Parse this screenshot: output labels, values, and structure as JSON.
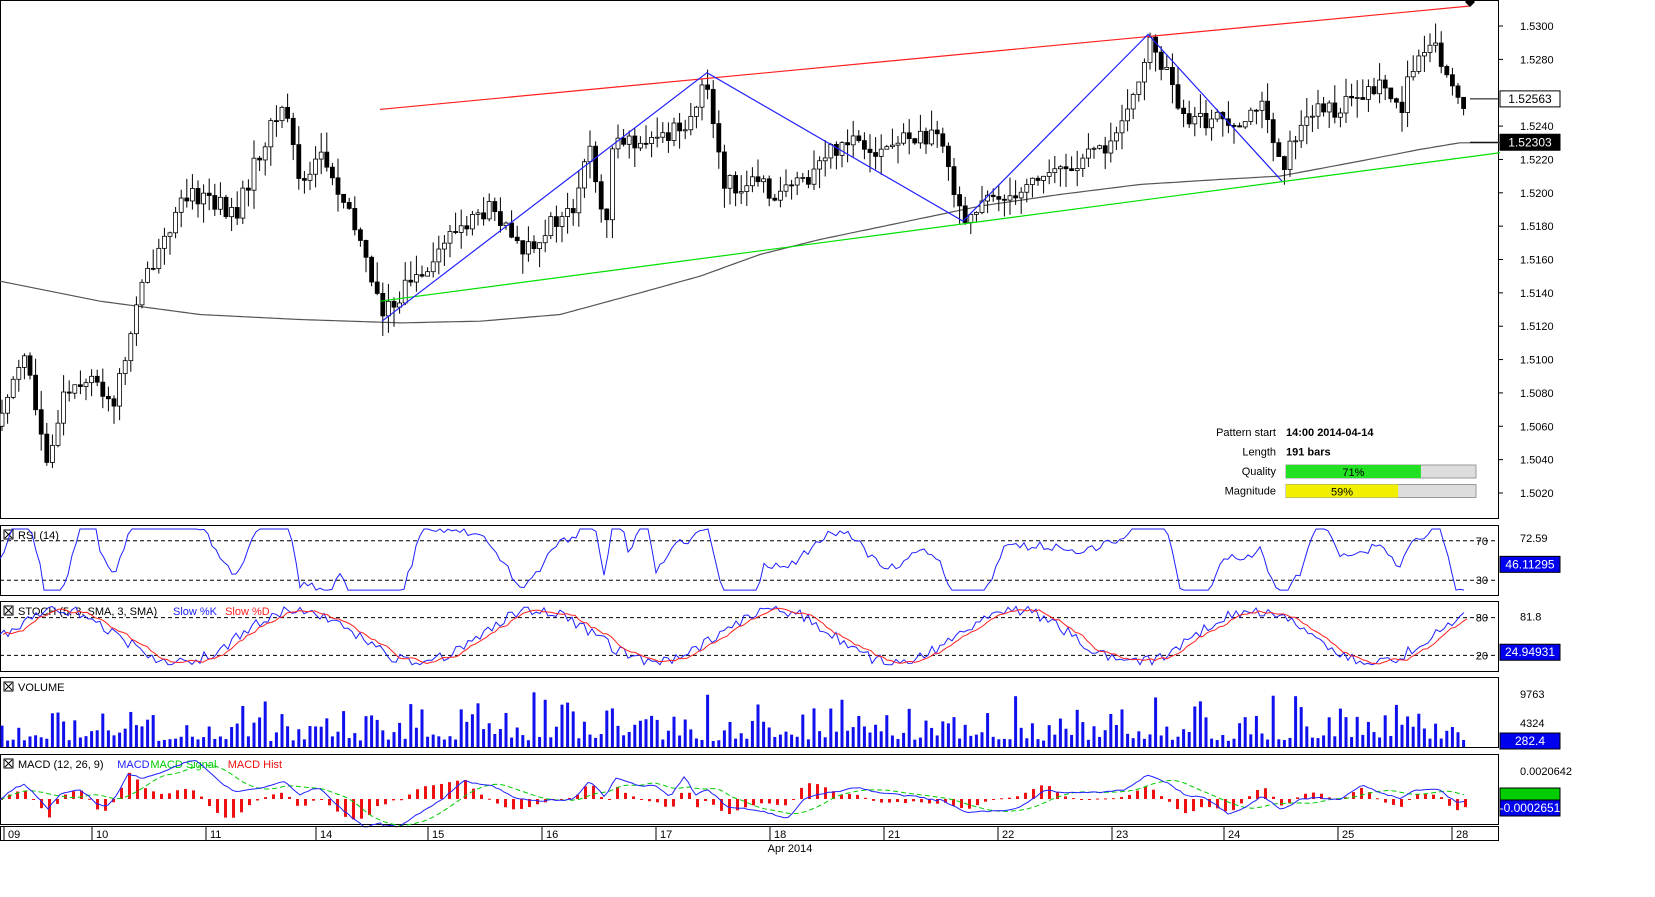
{
  "chart_data": {
    "type": "candlestick",
    "instrument_interval": "hourly",
    "price_axis": {
      "min": 1.5005,
      "max": 1.5315,
      "ticks": [
        "1.5300",
        "1.5280",
        "1.5240",
        "1.5220",
        "1.5200",
        "1.5180",
        "1.5160",
        "1.5140",
        "1.5120",
        "1.5100",
        "1.5080",
        "1.5060",
        "1.5040",
        "1.5020"
      ]
    },
    "x_axis": {
      "days": [
        "09",
        "10",
        "11",
        "14",
        "15",
        "16",
        "17",
        "18",
        "21",
        "22",
        "23",
        "24",
        "25",
        "28"
      ],
      "month_label": "Apr 2014"
    },
    "last_price_label": "1.52563",
    "ma_label": "1.52303",
    "price_anchors": [
      [
        0,
        1.506
      ],
      [
        15,
        1.5095
      ],
      [
        25,
        1.5105
      ],
      [
        48,
        1.503
      ],
      [
        62,
        1.508
      ],
      [
        85,
        1.509
      ],
      [
        115,
        1.5075
      ],
      [
        140,
        1.514
      ],
      [
        160,
        1.517
      ],
      [
        185,
        1.5195
      ],
      [
        205,
        1.52
      ],
      [
        235,
        1.5185
      ],
      [
        260,
        1.5225
      ],
      [
        285,
        1.5255
      ],
      [
        300,
        1.5205
      ],
      [
        320,
        1.5225
      ],
      [
        345,
        1.519
      ],
      [
        365,
        1.5165
      ],
      [
        383,
        1.5125
      ],
      [
        400,
        1.514
      ],
      [
        430,
        1.516
      ],
      [
        460,
        1.518
      ],
      [
        490,
        1.519
      ],
      [
        520,
        1.5165
      ],
      [
        550,
        1.518
      ],
      [
        575,
        1.519
      ],
      [
        590,
        1.523
      ],
      [
        605,
        1.517
      ],
      [
        615,
        1.524
      ],
      [
        640,
        1.5225
      ],
      [
        665,
        1.5235
      ],
      [
        690,
        1.5245
      ],
      [
        707,
        1.5265
      ],
      [
        725,
        1.5205
      ],
      [
        750,
        1.5205
      ],
      [
        780,
        1.52
      ],
      [
        800,
        1.5205
      ],
      [
        830,
        1.5225
      ],
      [
        855,
        1.5235
      ],
      [
        880,
        1.5225
      ],
      [
        915,
        1.5235
      ],
      [
        940,
        1.523
      ],
      [
        965,
        1.5185
      ],
      [
        990,
        1.5195
      ],
      [
        1010,
        1.52
      ],
      [
        1040,
        1.521
      ],
      [
        1070,
        1.5215
      ],
      [
        1100,
        1.5225
      ],
      [
        1125,
        1.524
      ],
      [
        1148,
        1.529
      ],
      [
        1165,
        1.5275
      ],
      [
        1185,
        1.524
      ],
      [
        1210,
        1.5245
      ],
      [
        1240,
        1.5245
      ],
      [
        1260,
        1.5255
      ],
      [
        1282,
        1.521
      ],
      [
        1300,
        1.5245
      ],
      [
        1330,
        1.525
      ],
      [
        1360,
        1.5255
      ],
      [
        1380,
        1.5265
      ],
      [
        1400,
        1.525
      ],
      [
        1415,
        1.528
      ],
      [
        1438,
        1.5285
      ],
      [
        1455,
        1.5255
      ],
      [
        1470,
        1.5256
      ]
    ],
    "ma_anchors": [
      [
        0,
        1.5147
      ],
      [
        100,
        1.5135
      ],
      [
        200,
        1.5127
      ],
      [
        300,
        1.5124
      ],
      [
        400,
        1.5122
      ],
      [
        480,
        1.5123
      ],
      [
        560,
        1.5127
      ],
      [
        640,
        1.514
      ],
      [
        700,
        1.515
      ],
      [
        760,
        1.5163
      ],
      [
        820,
        1.5172
      ],
      [
        900,
        1.5182
      ],
      [
        980,
        1.5192
      ],
      [
        1060,
        1.5199
      ],
      [
        1140,
        1.5205
      ],
      [
        1220,
        1.5208
      ],
      [
        1280,
        1.521
      ],
      [
        1360,
        1.5219
      ],
      [
        1420,
        1.5226
      ],
      [
        1460,
        1.523
      ],
      [
        1500,
        1.523
      ]
    ],
    "channel_upper": {
      "x": [
        380,
        1470
      ],
      "y": [
        1.525,
        1.5312
      ]
    },
    "channel_lower": {
      "x": [
        380,
        1500
      ],
      "y": [
        1.5135,
        1.5224
      ]
    },
    "pattern_zigzag": [
      [
        382,
        1.5123
      ],
      [
        707,
        1.5272
      ],
      [
        963,
        1.5183
      ],
      [
        1148,
        1.5295
      ],
      [
        1282,
        1.5207
      ]
    ],
    "pattern_info": {
      "rows": [
        {
          "label": "Pattern start",
          "value": "14:00 2014-04-14"
        },
        {
          "label": "Length",
          "value": "191 bars"
        },
        {
          "label": "Quality",
          "value": "71%",
          "fill": 0.71,
          "color": "#22e022"
        },
        {
          "label": "Magnitude",
          "value": "59%",
          "fill": 0.59,
          "color": "#f0f000"
        }
      ]
    },
    "indicators": [
      {
        "title": "RSI (14)",
        "axis_labels": [
          "70",
          "30"
        ],
        "side_labels": [
          "72.59"
        ],
        "value_label": "46.11295"
      },
      {
        "title": "STOCH (5, 3, SMA, 3, SMA)",
        "series": [
          "Slow %K",
          "Slow %D"
        ],
        "axis_labels": [
          "80",
          "20"
        ],
        "side_labels": [
          "81.8"
        ],
        "value_label": "24.94931"
      },
      {
        "title": "VOLUME",
        "side_labels": [
          "9763",
          "4324"
        ],
        "value_label": "282.4"
      },
      {
        "title": "MACD (12, 26, 9)",
        "series": [
          "MACD",
          "MACD Signal",
          "MACD Hist"
        ],
        "side_labels": [
          "0.0020642"
        ],
        "value_label": "-0.0002651"
      }
    ],
    "colors": {
      "candle": "#000000",
      "ma": "#555555",
      "channel_upper": "#ff2020",
      "channel_lower": "#00e000",
      "pattern": "#2020ff",
      "rsi": "#2020ff",
      "stoch_k": "#2020ff",
      "stoch_d": "#ff2020",
      "volume": "#1010ee",
      "macd": "#2020ff",
      "macd_signal": "#00cc00",
      "macd_hist": "#ee1010"
    }
  }
}
